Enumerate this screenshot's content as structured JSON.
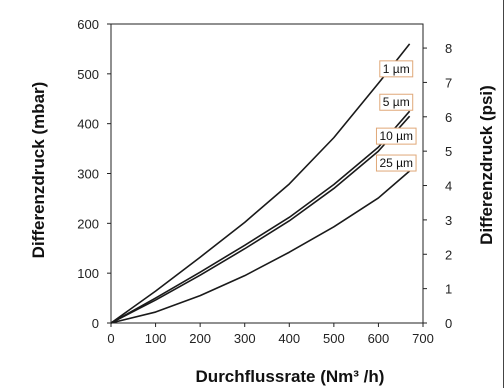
{
  "chart_data": {
    "type": "line",
    "xlabel": "Durchflussrate (Nm³ /h)",
    "ylabel": "Differenzdruck (mbar)",
    "y2label": "Differenzdruck (psi)",
    "xlim": [
      0,
      700
    ],
    "ylim": [
      0,
      600
    ],
    "y2lim": [
      0,
      8.7
    ],
    "xticks": [
      "0",
      "100",
      "200",
      "300",
      "400",
      "500",
      "600",
      "700"
    ],
    "yticks": [
      "0",
      "100",
      "200",
      "300",
      "400",
      "500",
      "600"
    ],
    "y2ticks": [
      "0",
      "1",
      "2",
      "3",
      "4",
      "5",
      "6",
      "7",
      "8"
    ],
    "grid": false,
    "line_color": "#1a1a1a",
    "label_border_color": "#e0a878",
    "series": [
      {
        "name": "1 µm",
        "x": [
          0,
          100,
          200,
          300,
          400,
          500,
          600,
          670
        ],
        "y": [
          0,
          64,
          132,
          202,
          279,
          372,
          481,
          560
        ]
      },
      {
        "name": "5 µm",
        "x": [
          0,
          100,
          200,
          300,
          400,
          500,
          600,
          670
        ],
        "y": [
          0,
          50,
          102,
          156,
          212,
          278,
          353,
          425
        ]
      },
      {
        "name": "10 µm",
        "x": [
          0,
          100,
          200,
          300,
          400,
          500,
          600,
          670
        ],
        "y": [
          0,
          46,
          96,
          149,
          205,
          270,
          345,
          415
        ]
      },
      {
        "name": "25 µm",
        "x": [
          0,
          100,
          200,
          300,
          400,
          500,
          600,
          670
        ],
        "y": [
          0,
          22,
          55,
          95,
          142,
          193,
          251,
          305
        ]
      }
    ],
    "series_label_positions": [
      {
        "x": 640,
        "y": 510
      },
      {
        "x": 640,
        "y": 443
      },
      {
        "x": 640,
        "y": 375
      },
      {
        "x": 640,
        "y": 321
      }
    ]
  }
}
